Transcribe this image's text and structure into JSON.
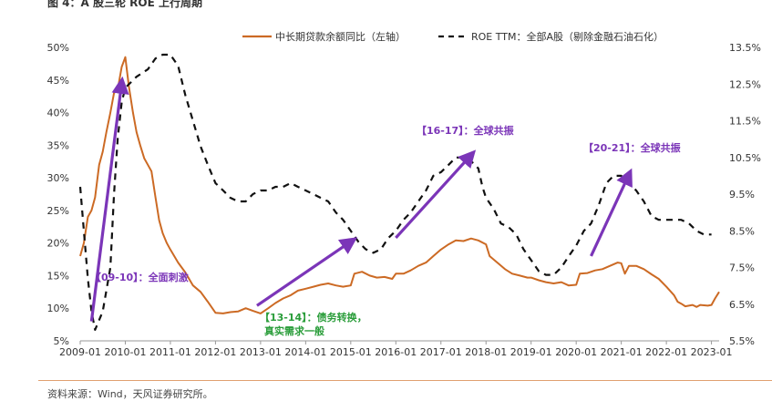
{
  "figure_title": "图 4：A 股三轮 ROE 上行周期",
  "source": "资料来源：Wind，天风证券研究所。",
  "chart_data": {
    "type": "line",
    "title": "",
    "legend_position": "top",
    "x_axis": {
      "range": [
        2009.0,
        2023.17
      ],
      "ticks": [
        {
          "v": 2009.0,
          "label": "2009-01"
        },
        {
          "v": 2010.0,
          "label": "2010-01"
        },
        {
          "v": 2011.0,
          "label": "2011-01"
        },
        {
          "v": 2012.0,
          "label": "2012-01"
        },
        {
          "v": 2013.0,
          "label": "2013-01"
        },
        {
          "v": 2014.0,
          "label": "2014-01"
        },
        {
          "v": 2015.0,
          "label": "2015-01"
        },
        {
          "v": 2016.0,
          "label": "2016-01"
        },
        {
          "v": 2017.0,
          "label": "2017-01"
        },
        {
          "v": 2018.0,
          "label": "2018-01"
        },
        {
          "v": 2019.0,
          "label": "2019-01"
        },
        {
          "v": 2020.0,
          "label": "2020-01"
        },
        {
          "v": 2021.0,
          "label": "2021-01"
        },
        {
          "v": 2022.0,
          "label": "2022-01"
        },
        {
          "v": 2023.0,
          "label": "2023-01"
        }
      ]
    },
    "y_left": {
      "range": [
        5,
        50
      ],
      "ticks": [
        {
          "v": 50,
          "label": "50%"
        },
        {
          "v": 45,
          "label": "45%"
        },
        {
          "v": 40,
          "label": "40%"
        },
        {
          "v": 35,
          "label": "35%"
        },
        {
          "v": 30,
          "label": "30%"
        },
        {
          "v": 25,
          "label": "25%"
        },
        {
          "v": 20,
          "label": "20%"
        },
        {
          "v": 15,
          "label": "15%"
        },
        {
          "v": 10,
          "label": "10%"
        },
        {
          "v": 5,
          "label": "5%"
        }
      ]
    },
    "y_right": {
      "range": [
        5.5,
        13.5
      ],
      "ticks": [
        {
          "v": 13.5,
          "label": "13.5%"
        },
        {
          "v": 12.5,
          "label": "12.5%"
        },
        {
          "v": 11.5,
          "label": "11.5%"
        },
        {
          "v": 10.5,
          "label": "10.5%"
        },
        {
          "v": 9.5,
          "label": "9.5%"
        },
        {
          "v": 8.5,
          "label": "8.5%"
        },
        {
          "v": 7.5,
          "label": "7.5%"
        },
        {
          "v": 6.5,
          "label": "6.5%"
        },
        {
          "v": 5.5,
          "label": "5.5%"
        }
      ]
    },
    "series": [
      {
        "name": "中长期贷款余额同比（左轴）",
        "axis": "left",
        "style": "solid",
        "color": "#cc6a24",
        "points": [
          [
            2009.0,
            18
          ],
          [
            2009.08,
            20
          ],
          [
            2009.17,
            24
          ],
          [
            2009.25,
            25
          ],
          [
            2009.33,
            27
          ],
          [
            2009.42,
            32
          ],
          [
            2009.5,
            34
          ],
          [
            2009.58,
            37
          ],
          [
            2009.67,
            40
          ],
          [
            2009.75,
            43
          ],
          [
            2009.83,
            43.5
          ],
          [
            2009.92,
            47
          ],
          [
            2010.0,
            48.5
          ],
          [
            2010.08,
            44
          ],
          [
            2010.17,
            40
          ],
          [
            2010.25,
            37
          ],
          [
            2010.33,
            35
          ],
          [
            2010.42,
            33
          ],
          [
            2010.5,
            32
          ],
          [
            2010.58,
            31
          ],
          [
            2010.67,
            27
          ],
          [
            2010.75,
            23.5
          ],
          [
            2010.83,
            21.5
          ],
          [
            2010.92,
            20
          ],
          [
            2011.0,
            19
          ],
          [
            2011.17,
            17
          ],
          [
            2011.33,
            15.5
          ],
          [
            2011.5,
            13.5
          ],
          [
            2011.67,
            12.5
          ],
          [
            2011.83,
            11
          ],
          [
            2012.0,
            9.3
          ],
          [
            2012.17,
            9.2
          ],
          [
            2012.33,
            9.4
          ],
          [
            2012.5,
            9.5
          ],
          [
            2012.67,
            10
          ],
          [
            2012.83,
            9.6
          ],
          [
            2013.0,
            9.2
          ],
          [
            2013.17,
            10
          ],
          [
            2013.33,
            10.8
          ],
          [
            2013.5,
            11.5
          ],
          [
            2013.67,
            12
          ],
          [
            2013.83,
            12.7
          ],
          [
            2014.0,
            13
          ],
          [
            2014.17,
            13.3
          ],
          [
            2014.33,
            13.6
          ],
          [
            2014.5,
            13.8
          ],
          [
            2014.67,
            13.5
          ],
          [
            2014.83,
            13.3
          ],
          [
            2015.0,
            13.5
          ],
          [
            2015.08,
            15.3
          ],
          [
            2015.25,
            15.6
          ],
          [
            2015.42,
            15
          ],
          [
            2015.58,
            14.7
          ],
          [
            2015.75,
            14.8
          ],
          [
            2015.92,
            14.5
          ],
          [
            2016.0,
            15.3
          ],
          [
            2016.17,
            15.3
          ],
          [
            2016.33,
            15.8
          ],
          [
            2016.5,
            16.5
          ],
          [
            2016.67,
            17
          ],
          [
            2016.83,
            18
          ],
          [
            2017.0,
            19
          ],
          [
            2017.17,
            19.8
          ],
          [
            2017.33,
            20.4
          ],
          [
            2017.5,
            20.3
          ],
          [
            2017.67,
            20.7
          ],
          [
            2017.83,
            20.4
          ],
          [
            2018.0,
            19.8
          ],
          [
            2018.08,
            18
          ],
          [
            2018.25,
            17
          ],
          [
            2018.42,
            16
          ],
          [
            2018.58,
            15.3
          ],
          [
            2018.75,
            15
          ],
          [
            2018.92,
            14.7
          ],
          [
            2019.0,
            14.7
          ],
          [
            2019.17,
            14.3
          ],
          [
            2019.33,
            14
          ],
          [
            2019.5,
            13.8
          ],
          [
            2019.67,
            14
          ],
          [
            2019.83,
            13.5
          ],
          [
            2020.0,
            13.6
          ],
          [
            2020.08,
            15.3
          ],
          [
            2020.25,
            15.4
          ],
          [
            2020.42,
            15.8
          ],
          [
            2020.58,
            16
          ],
          [
            2020.75,
            16.5
          ],
          [
            2020.92,
            17
          ],
          [
            2021.0,
            16.9
          ],
          [
            2021.08,
            15.3
          ],
          [
            2021.17,
            16.5
          ],
          [
            2021.33,
            16.5
          ],
          [
            2021.5,
            16
          ],
          [
            2021.67,
            15.2
          ],
          [
            2021.83,
            14.5
          ],
          [
            2022.0,
            13.3
          ],
          [
            2022.17,
            12
          ],
          [
            2022.25,
            11
          ],
          [
            2022.33,
            10.7
          ],
          [
            2022.42,
            10.3
          ],
          [
            2022.58,
            10.5
          ],
          [
            2022.67,
            10.2
          ],
          [
            2022.75,
            10.5
          ],
          [
            2022.92,
            10.4
          ],
          [
            2023.0,
            10.5
          ],
          [
            2023.08,
            11.5
          ],
          [
            2023.17,
            12.5
          ]
        ]
      },
      {
        "name": "ROE TTM：全部A股（剔除金融石油石化）",
        "axis": "right",
        "style": "dashed",
        "color": "#111111",
        "points": [
          [
            2009.0,
            9.7
          ],
          [
            2009.08,
            8.5
          ],
          [
            2009.17,
            7.2
          ],
          [
            2009.25,
            6.3
          ],
          [
            2009.33,
            5.8
          ],
          [
            2009.5,
            6.3
          ],
          [
            2009.67,
            7.5
          ],
          [
            2009.75,
            9.5
          ],
          [
            2009.83,
            11
          ],
          [
            2009.92,
            12
          ],
          [
            2010.0,
            12.4
          ],
          [
            2010.25,
            12.7
          ],
          [
            2010.5,
            12.9
          ],
          [
            2010.67,
            13.2
          ],
          [
            2010.83,
            13.3
          ],
          [
            2011.0,
            13.3
          ],
          [
            2011.17,
            13
          ],
          [
            2011.33,
            12.2
          ],
          [
            2011.5,
            11.5
          ],
          [
            2011.67,
            10.8
          ],
          [
            2011.83,
            10.3
          ],
          [
            2012.0,
            9.8
          ],
          [
            2012.17,
            9.6
          ],
          [
            2012.33,
            9.4
          ],
          [
            2012.5,
            9.3
          ],
          [
            2012.67,
            9.3
          ],
          [
            2012.83,
            9.5
          ],
          [
            2013.0,
            9.6
          ],
          [
            2013.17,
            9.6
          ],
          [
            2013.33,
            9.7
          ],
          [
            2013.5,
            9.7
          ],
          [
            2013.67,
            9.8
          ],
          [
            2013.83,
            9.7
          ],
          [
            2014.0,
            9.6
          ],
          [
            2014.17,
            9.5
          ],
          [
            2014.33,
            9.4
          ],
          [
            2014.5,
            9.3
          ],
          [
            2014.67,
            9.0
          ],
          [
            2014.83,
            8.8
          ],
          [
            2015.0,
            8.5
          ],
          [
            2015.17,
            8.2
          ],
          [
            2015.33,
            8.0
          ],
          [
            2015.5,
            7.9
          ],
          [
            2015.67,
            8.0
          ],
          [
            2015.83,
            8.3
          ],
          [
            2016.0,
            8.5
          ],
          [
            2016.17,
            8.8
          ],
          [
            2016.33,
            9.0
          ],
          [
            2016.5,
            9.3
          ],
          [
            2016.67,
            9.6
          ],
          [
            2016.83,
            10.0
          ],
          [
            2017.0,
            10.1
          ],
          [
            2017.17,
            10.3
          ],
          [
            2017.33,
            10.5
          ],
          [
            2017.5,
            10.5
          ],
          [
            2017.67,
            10.4
          ],
          [
            2017.83,
            10.2
          ],
          [
            2017.92,
            9.7
          ],
          [
            2018.0,
            9.4
          ],
          [
            2018.17,
            9.1
          ],
          [
            2018.33,
            8.7
          ],
          [
            2018.5,
            8.6
          ],
          [
            2018.67,
            8.4
          ],
          [
            2018.83,
            8.0
          ],
          [
            2019.0,
            7.7
          ],
          [
            2019.17,
            7.4
          ],
          [
            2019.33,
            7.3
          ],
          [
            2019.5,
            7.3
          ],
          [
            2019.67,
            7.5
          ],
          [
            2019.83,
            7.8
          ],
          [
            2020.0,
            8.1
          ],
          [
            2020.17,
            8.5
          ],
          [
            2020.33,
            8.7
          ],
          [
            2020.5,
            9.2
          ],
          [
            2020.67,
            9.8
          ],
          [
            2020.83,
            10.0
          ],
          [
            2021.0,
            10.0
          ],
          [
            2021.17,
            9.8
          ],
          [
            2021.33,
            9.6
          ],
          [
            2021.5,
            9.3
          ],
          [
            2021.67,
            8.9
          ],
          [
            2021.83,
            8.8
          ],
          [
            2022.0,
            8.8
          ],
          [
            2022.17,
            8.8
          ],
          [
            2022.33,
            8.8
          ],
          [
            2022.5,
            8.7
          ],
          [
            2022.67,
            8.5
          ],
          [
            2022.83,
            8.4
          ],
          [
            2023.0,
            8.4
          ]
        ]
      }
    ],
    "arrows": [
      {
        "label": "【09-10】：全面刺激",
        "from": [
          2009.25,
          8
        ],
        "to": [
          2009.92,
          44.5
        ],
        "color": "#7b35b8"
      },
      {
        "label": "【13-14】：债务转换，真实需求一般",
        "from": [
          2012.92,
          10.4
        ],
        "to": [
          2015.02,
          20.3
        ],
        "color": "#7b35b8"
      },
      {
        "label": "【16-17】：全球共振",
        "from": [
          2016.0,
          20.8
        ],
        "to": [
          2017.67,
          33.5
        ],
        "color": "#7b35b8"
      },
      {
        "label": "【20-21】：全球共振",
        "from": [
          2020.33,
          18
        ],
        "to": [
          2021.17,
          30.5
        ],
        "color": "#7b35b8"
      }
    ],
    "annotations": [
      {
        "text": "【09-10】：全面刺激",
        "color": "#7b35b8"
      },
      {
        "text": "【13-14】：债务转换，",
        "color": "#2a9d3a"
      },
      {
        "text": "真实需求一般",
        "color": "#2a9d3a"
      },
      {
        "text": "【16-17】：全球共振",
        "color": "#7b35b8"
      },
      {
        "text": "【20-21】：全球共振",
        "color": "#7b35b8"
      }
    ]
  }
}
